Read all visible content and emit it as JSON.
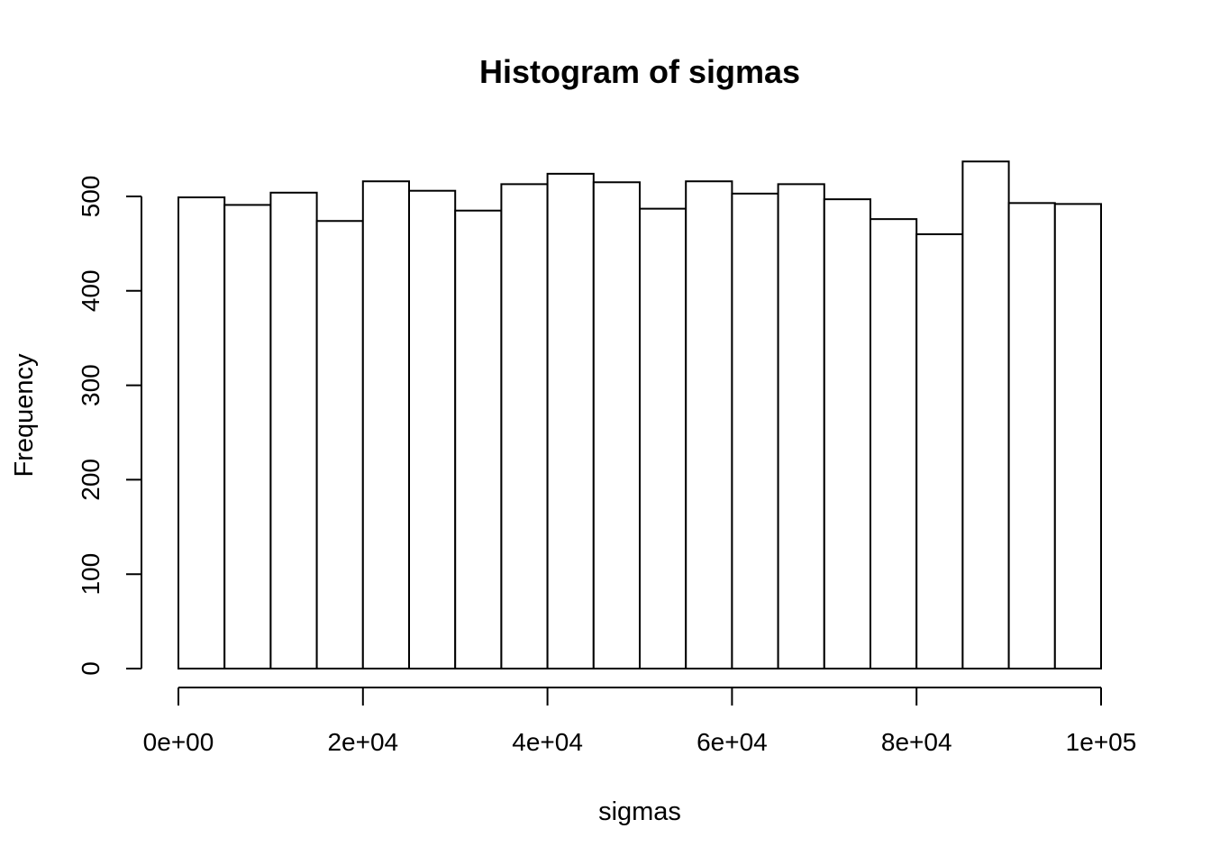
{
  "chart_data": {
    "type": "bar",
    "subtype": "histogram",
    "title": "Histogram of sigmas",
    "xlabel": "sigmas",
    "ylabel": "Frequency",
    "bin_edges": [
      0,
      5000,
      10000,
      15000,
      20000,
      25000,
      30000,
      35000,
      40000,
      45000,
      50000,
      55000,
      60000,
      65000,
      70000,
      75000,
      80000,
      85000,
      90000,
      95000,
      100000
    ],
    "values": [
      499,
      491,
      504,
      474,
      516,
      506,
      485,
      513,
      524,
      515,
      487,
      516,
      503,
      513,
      497,
      476,
      460,
      537,
      493,
      492
    ],
    "xlim": [
      0,
      100000
    ],
    "ylim": [
      0,
      537
    ],
    "x_ticks": [
      0,
      20000,
      40000,
      60000,
      80000,
      100000
    ],
    "x_tick_labels": [
      "0e+00",
      "2e+04",
      "4e+04",
      "6e+04",
      "8e+04",
      "1e+05"
    ],
    "y_ticks": [
      0,
      100,
      200,
      300,
      400,
      500
    ],
    "y_tick_labels": [
      "0",
      "100",
      "200",
      "300",
      "400",
      "500"
    ],
    "grid": false,
    "bar_fill": "#ffffff",
    "bar_stroke": "#000000"
  }
}
